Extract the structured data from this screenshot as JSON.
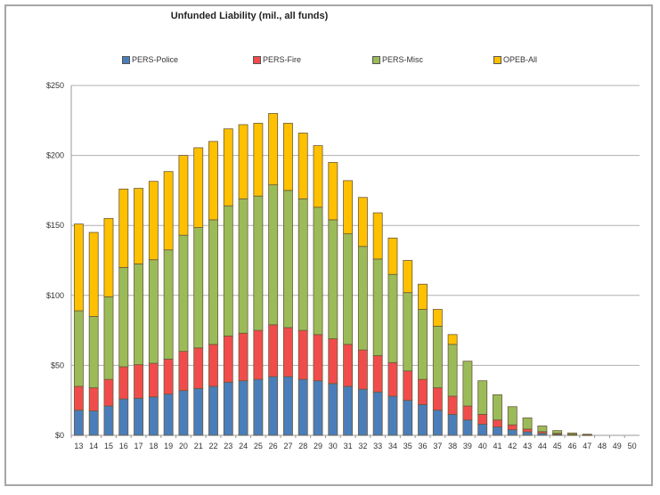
{
  "chart_data": {
    "type": "bar",
    "stacked": true,
    "title": "Unfunded Liability (mil., all funds)",
    "xlabel": "",
    "ylabel": "",
    "ylim": [
      0,
      250
    ],
    "yticks": [
      "$0",
      "$50",
      "$100",
      "$150",
      "$200",
      "$250"
    ],
    "ytick_values": [
      0,
      50,
      100,
      150,
      200,
      250
    ],
    "grid": true,
    "legend_position": "top",
    "categories": [
      "13",
      "14",
      "15",
      "16",
      "17",
      "18",
      "19",
      "20",
      "21",
      "22",
      "23",
      "24",
      "25",
      "26",
      "27",
      "28",
      "29",
      "30",
      "31",
      "32",
      "33",
      "34",
      "35",
      "36",
      "37",
      "38",
      "39",
      "40",
      "41",
      "42",
      "43",
      "44",
      "45",
      "46",
      "47",
      "48",
      "49",
      "50"
    ],
    "series": [
      {
        "name": "PERS-Police",
        "color": "#4a7ebb",
        "values": [
          18,
          17.5,
          21,
          26,
          26.5,
          27.5,
          29.5,
          32,
          33.5,
          35,
          38,
          39,
          40,
          42,
          42,
          40,
          39,
          37,
          35,
          33,
          31,
          28,
          25,
          22,
          18,
          15,
          11,
          8,
          6,
          4,
          2.5,
          1.5,
          0.8,
          0.4,
          0.2,
          0,
          0,
          0
        ]
      },
      {
        "name": "PERS-Fire",
        "color": "#f14c4c",
        "values": [
          17,
          16.5,
          19,
          23,
          24,
          24,
          25,
          28,
          29,
          30,
          33,
          34,
          35,
          37,
          35,
          35,
          33,
          32,
          30,
          28,
          26,
          24,
          21,
          18,
          16,
          13,
          10,
          7,
          5,
          3.5,
          2,
          1.2,
          0.6,
          0.3,
          0.1,
          0,
          0,
          0
        ]
      },
      {
        "name": "PERS-Misc",
        "color": "#9bbb59",
        "values": [
          54,
          51,
          59,
          71,
          72,
          74,
          78,
          83,
          86,
          89,
          93,
          96,
          96,
          100,
          98,
          94,
          91,
          85,
          79,
          74,
          69,
          63,
          56,
          50,
          44,
          37,
          32,
          24,
          18,
          13,
          8,
          4,
          2,
          1,
          0.5,
          0,
          0,
          0
        ]
      },
      {
        "name": "OPEB-All",
        "color": "#ffc000",
        "values": [
          62,
          60,
          56,
          56,
          54,
          56,
          56,
          57,
          57,
          56,
          55,
          53,
          52,
          51,
          48,
          47,
          44,
          41,
          38,
          35,
          33,
          26,
          23,
          18,
          12,
          7,
          0,
          0,
          0,
          0,
          0,
          0,
          0,
          0,
          0,
          0,
          0,
          0
        ]
      }
    ]
  }
}
